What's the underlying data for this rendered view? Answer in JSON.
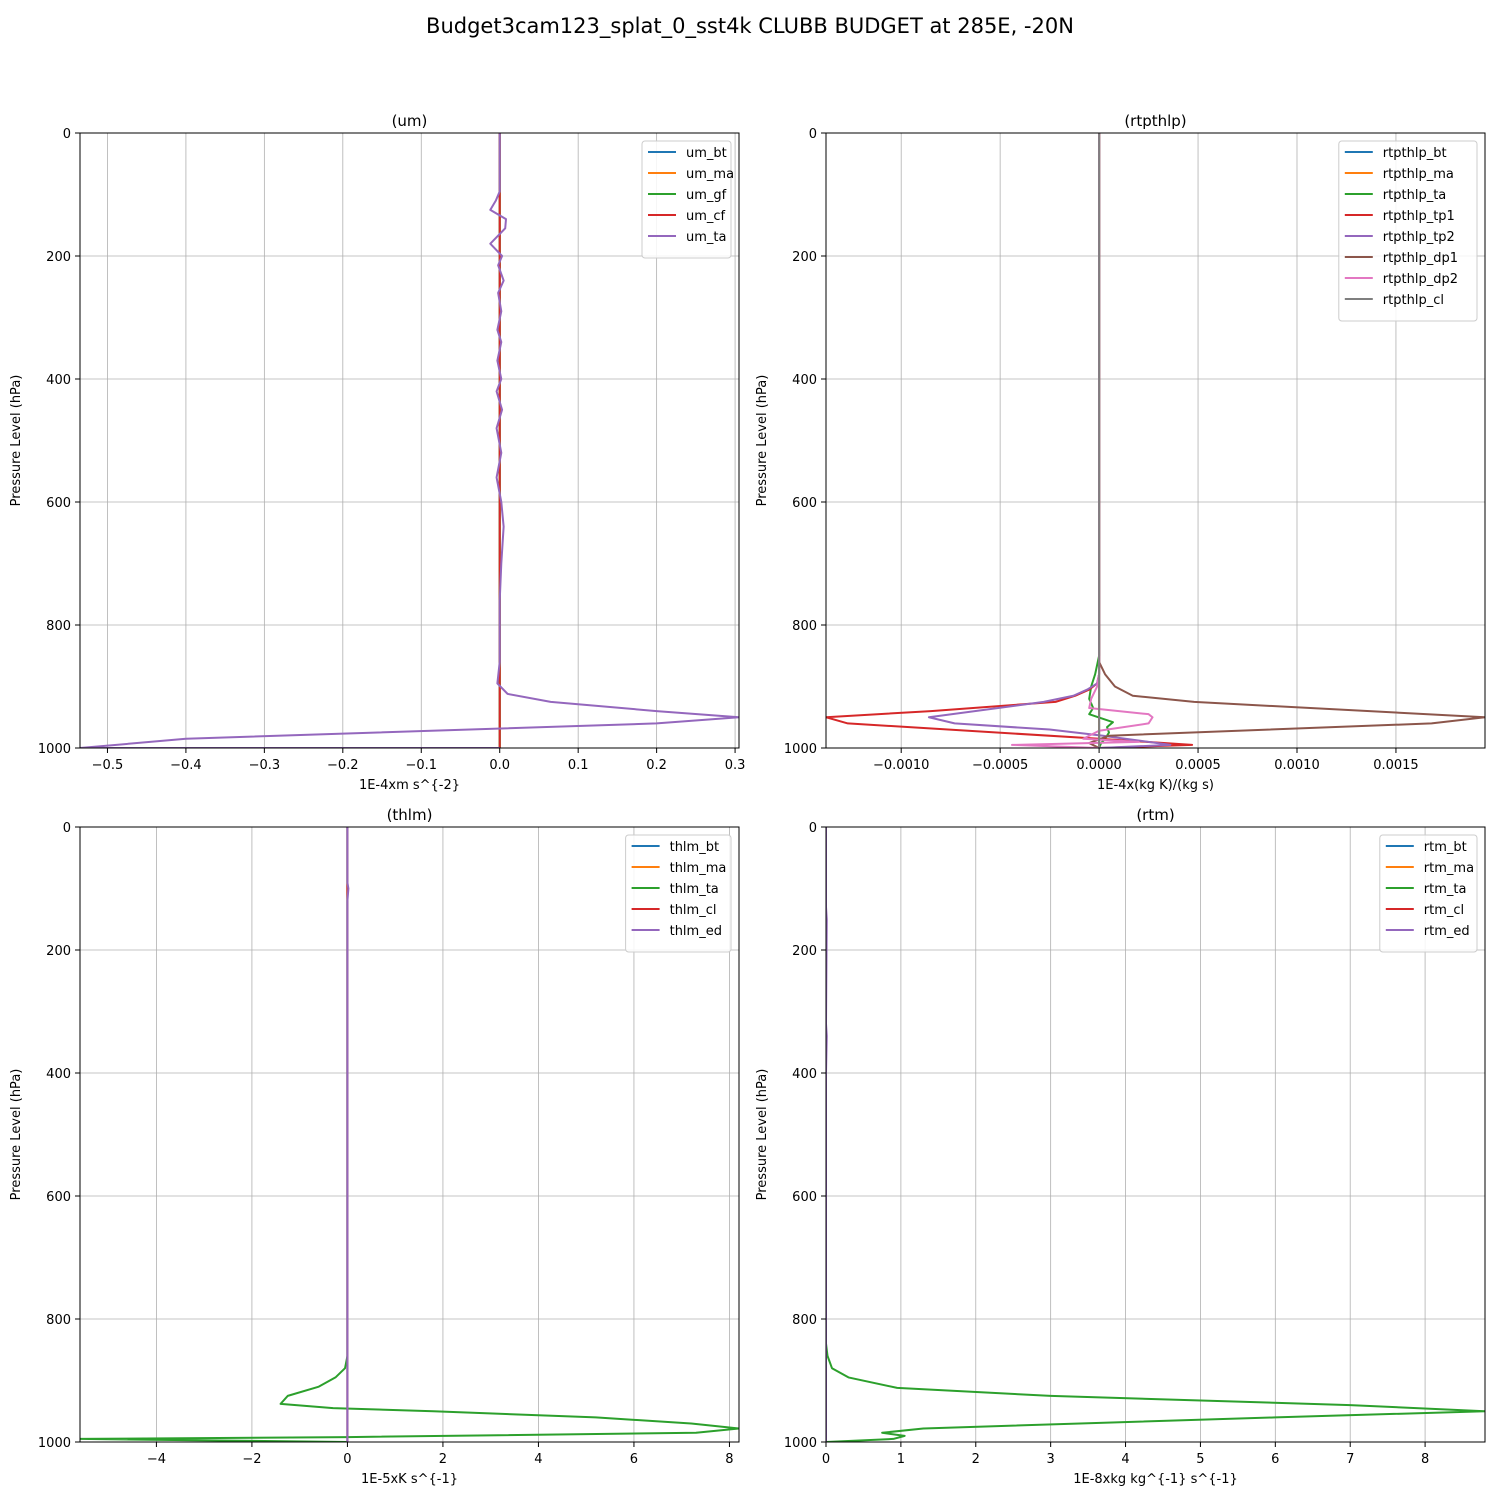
{
  "figure": {
    "title": "Budget3cam123_splat_0_sst4k CLUBB BUDGET at 285E, -20N",
    "colors": [
      "#1f77b4",
      "#ff7f0e",
      "#2ca02c",
      "#d62728",
      "#9467bd",
      "#8c564b",
      "#e377c2",
      "#7f7f7f"
    ]
  },
  "chart_data": [
    {
      "type": "line",
      "title": "(um)",
      "xlabel": "1E-4xm s^{-2}",
      "ylabel": "Pressure Level (hPa)",
      "xlim": [
        -0.535,
        0.305
      ],
      "ylim": [
        1000,
        0
      ],
      "xticks": [
        -0.5,
        -0.4,
        -0.3,
        -0.2,
        -0.1,
        0.0,
        0.1,
        0.2,
        0.3
      ],
      "xtick_labels": [
        "−0.5",
        "−0.4",
        "−0.3",
        "−0.2",
        "−0.1",
        "0.0",
        "0.1",
        "0.2",
        "0.3"
      ],
      "yticks": [
        0,
        200,
        400,
        600,
        800,
        1000
      ],
      "ytick_labels": [
        "0",
        "200",
        "400",
        "600",
        "800",
        "1000"
      ],
      "grid": true,
      "legend_position": "top-right",
      "series": [
        {
          "name": "um_bt",
          "color": "#1f77b4",
          "x": [
            0,
            0
          ],
          "y": [
            0,
            1000
          ]
        },
        {
          "name": "um_ma",
          "color": "#ff7f0e",
          "x": [
            0,
            0
          ],
          "y": [
            0,
            1000
          ]
        },
        {
          "name": "um_gf",
          "color": "#2ca02c",
          "x": [
            0,
            0
          ],
          "y": [
            0,
            1000
          ]
        },
        {
          "name": "um_cf",
          "color": "#d62728",
          "x": [
            0,
            0
          ],
          "y": [
            0,
            1000
          ]
        },
        {
          "name": "um_ta",
          "color": "#9467bd",
          "x": [
            0,
            0,
            0,
            -0.005,
            -0.012,
            0.008,
            0.007,
            -0.012,
            0.003,
            -0.002,
            0.005,
            -0.002,
            0.002,
            -0.003,
            0.002,
            -0.003,
            0.002,
            -0.004,
            0.003,
            -0.004,
            0.002,
            -0.004,
            0.002,
            0.005,
            0.002,
            0,
            0,
            -0.003,
            0.01,
            0.065,
            0.2,
            0.305,
            0.2,
            -0.4,
            -0.535,
            -0.3,
            0
          ],
          "y": [
            0,
            50,
            95,
            110,
            125,
            140,
            155,
            180,
            200,
            215,
            240,
            260,
            290,
            320,
            340,
            370,
            400,
            420,
            450,
            480,
            520,
            560,
            600,
            640,
            700,
            760,
            860,
            895,
            912,
            925,
            940,
            950,
            960,
            985,
            1000,
            1000,
            1000
          ]
        }
      ]
    },
    {
      "type": "line",
      "title": "(rtpthlp)",
      "xlabel": "1E-4x(kg K)/(kg s)",
      "ylabel": "Pressure Level (hPa)",
      "xlim": [
        -0.00138,
        0.00195
      ],
      "ylim": [
        1000,
        0
      ],
      "xticks": [
        -0.001,
        -0.0005,
        0,
        0.0005,
        0.001,
        0.0015
      ],
      "xtick_labels": [
        "−0.0010",
        "−0.0005",
        "0.0000",
        "0.0005",
        "0.0010",
        "0.0015"
      ],
      "yticks": [
        0,
        200,
        400,
        600,
        800,
        1000
      ],
      "ytick_labels": [
        "0",
        "200",
        "400",
        "600",
        "800",
        "1000"
      ],
      "grid": true,
      "legend_position": "top-right",
      "series": [
        {
          "name": "rtpthlp_bt",
          "color": "#1f77b4",
          "x": [
            0,
            0
          ],
          "y": [
            0,
            1000
          ]
        },
        {
          "name": "rtpthlp_ma",
          "color": "#ff7f0e",
          "x": [
            0,
            0
          ],
          "y": [
            0,
            1000
          ]
        },
        {
          "name": "rtpthlp_ta",
          "color": "#2ca02c",
          "x": [
            0,
            0,
            -2e-05,
            -4e-05,
            -5e-05,
            -3e-05,
            -5e-05,
            7e-05,
            4e-05,
            5e-05,
            3e-05,
            1e-05,
            0
          ],
          "y": [
            0,
            850,
            880,
            900,
            920,
            935,
            945,
            958,
            966,
            975,
            985,
            992,
            1000
          ]
        },
        {
          "name": "rtpthlp_tp1",
          "color": "#d62728",
          "x": [
            0,
            0,
            -1e-05,
            -5e-05,
            -0.00012,
            -0.00022,
            -0.00085,
            -0.00138,
            -0.00127,
            0,
            0.00047,
            0
          ],
          "y": [
            0,
            880,
            895,
            905,
            915,
            925,
            940,
            950,
            960,
            985,
            995,
            1000
          ]
        },
        {
          "name": "rtpthlp_tp2",
          "color": "#9467bd",
          "x": [
            0,
            0,
            -1e-05,
            -6e-05,
            -0.00013,
            -0.00028,
            -0.00086,
            -0.00073,
            -0.00025,
            2e-05,
            0.00036,
            0
          ],
          "y": [
            0,
            880,
            895,
            905,
            915,
            925,
            950,
            960,
            970,
            980,
            995,
            1000
          ]
        },
        {
          "name": "rtpthlp_dp1",
          "color": "#8c564b",
          "x": [
            0,
            0,
            3e-05,
            8e-05,
            0.00017,
            0.00048,
            0.00195,
            0.00168,
            5e-05,
            -5e-05,
            0
          ],
          "y": [
            0,
            860,
            880,
            900,
            915,
            925,
            950,
            960,
            980,
            992,
            1000
          ]
        },
        {
          "name": "rtpthlp_dp2",
          "color": "#e377c2",
          "x": [
            0,
            0,
            -1e-05,
            -4e-05,
            -5e-05,
            0.00025,
            0.00027,
            0.00025,
            0,
            -8e-05,
            0.0002,
            -0.00044,
            0
          ],
          "y": [
            0,
            880,
            900,
            920,
            935,
            945,
            950,
            960,
            972,
            985,
            990,
            995,
            1000
          ]
        },
        {
          "name": "rtpthlp_cl",
          "color": "#7f7f7f",
          "x": [
            0,
            0
          ],
          "y": [
            0,
            1000
          ]
        }
      ]
    },
    {
      "type": "line",
      "title": "(thlm)",
      "xlabel": "1E-5xK s^{-1}",
      "ylabel": "Pressure Level (hPa)",
      "xlim": [
        -5.6,
        8.2
      ],
      "ylim": [
        1000,
        0
      ],
      "xticks": [
        -4,
        -2,
        0,
        2,
        4,
        6,
        8
      ],
      "xtick_labels": [
        "−4",
        "−2",
        "0",
        "2",
        "4",
        "6",
        "8"
      ],
      "yticks": [
        0,
        200,
        400,
        600,
        800,
        1000
      ],
      "ytick_labels": [
        "0",
        "200",
        "400",
        "600",
        "800",
        "1000"
      ],
      "grid": true,
      "legend_position": "top-right",
      "series": [
        {
          "name": "thlm_bt",
          "color": "#1f77b4",
          "x": [
            0,
            0
          ],
          "y": [
            0,
            1000
          ]
        },
        {
          "name": "thlm_ma",
          "color": "#ff7f0e",
          "x": [
            0,
            0
          ],
          "y": [
            0,
            1000
          ]
        },
        {
          "name": "thlm_ta",
          "color": "#2ca02c",
          "x": [
            0,
            0,
            -0.05,
            -0.25,
            -0.6,
            -1.25,
            -1.4,
            -0.3,
            1.8,
            5.2,
            7.2,
            8.2,
            7.3,
            0,
            -5.6,
            0
          ],
          "y": [
            0,
            860,
            880,
            895,
            910,
            925,
            938,
            945,
            950,
            960,
            970,
            978,
            985,
            992,
            995,
            1000
          ]
        },
        {
          "name": "thlm_cl",
          "color": "#d62728",
          "x": [
            0,
            0
          ],
          "y": [
            0,
            1000
          ]
        },
        {
          "name": "thlm_ed",
          "color": "#9467bd",
          "x": [
            0,
            0,
            0.02,
            0,
            0
          ],
          "y": [
            0,
            90,
            100,
            120,
            1000
          ]
        }
      ]
    },
    {
      "type": "line",
      "title": "(rtm)",
      "xlabel": "1E-8xkg kg^{-1} s^{-1}",
      "ylabel": "Pressure Level (hPa)",
      "xlim": [
        0,
        8.8
      ],
      "ylim": [
        1000,
        0
      ],
      "xticks": [
        0,
        1,
        2,
        3,
        4,
        5,
        6,
        7,
        8
      ],
      "xtick_labels": [
        "0",
        "1",
        "2",
        "3",
        "4",
        "5",
        "6",
        "7",
        "8"
      ],
      "yticks": [
        0,
        200,
        400,
        600,
        800,
        1000
      ],
      "ytick_labels": [
        "0",
        "200",
        "400",
        "600",
        "800",
        "1000"
      ],
      "grid": true,
      "legend_position": "top-right",
      "series": [
        {
          "name": "rtm_bt",
          "color": "#1f77b4",
          "x": [
            0,
            0
          ],
          "y": [
            0,
            1000
          ]
        },
        {
          "name": "rtm_ma",
          "color": "#ff7f0e",
          "x": [
            0,
            0
          ],
          "y": [
            0,
            1000
          ]
        },
        {
          "name": "rtm_ta",
          "color": "#2ca02c",
          "x": [
            0,
            0,
            0.02,
            0.08,
            0.3,
            0.95,
            3,
            7,
            8.8,
            6,
            1.3,
            0.75,
            1.05,
            0.9,
            0
          ],
          "y": [
            0,
            840,
            860,
            880,
            895,
            912,
            925,
            940,
            950,
            960,
            978,
            985,
            990,
            995,
            1000
          ]
        },
        {
          "name": "rtm_cl",
          "color": "#d62728",
          "x": [
            0,
            0
          ],
          "y": [
            0,
            1000
          ]
        },
        {
          "name": "rtm_ed",
          "color": "#9467bd",
          "x": [
            0,
            0,
            0.01,
            0,
            0.01,
            0,
            0
          ],
          "y": [
            0,
            130,
            150,
            320,
            340,
            400,
            1000
          ]
        }
      ]
    }
  ]
}
